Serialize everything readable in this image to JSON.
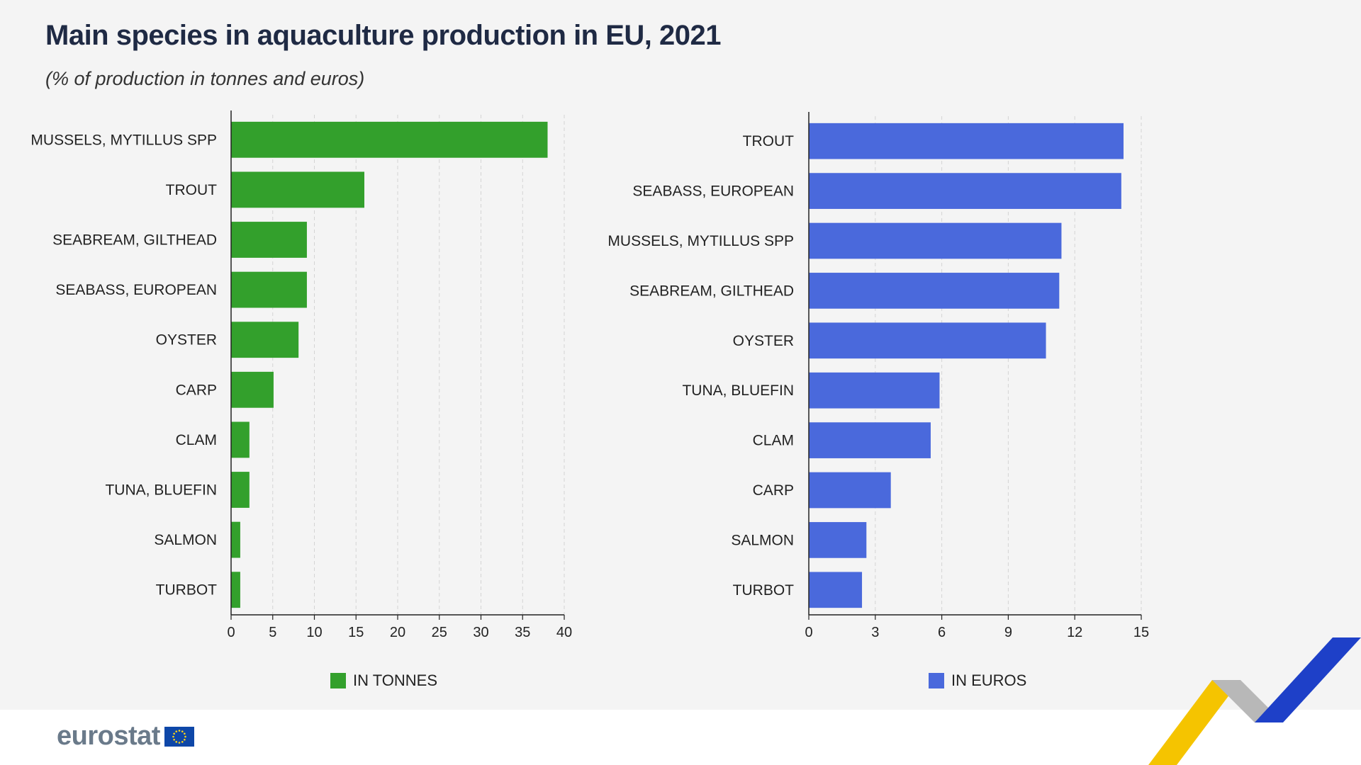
{
  "title": "Main species in aquaculture production in EU, 2021",
  "subtitle": "(% of production in tonnes and euros)",
  "logo_text": "eurostat",
  "chart_data": [
    {
      "type": "bar",
      "orientation": "horizontal",
      "categories": [
        "MUSSELS, MYTILLUS SPP",
        "TROUT",
        "SEABREAM, GILTHEAD",
        "SEABASS, EUROPEAN",
        "OYSTER",
        "CARP",
        "CLAM",
        "TUNA, BLUEFIN",
        "SALMON",
        "TURBOT"
      ],
      "series": [
        {
          "name": "IN TONNES",
          "values": [
            38,
            16,
            9.1,
            9.1,
            8.1,
            5.1,
            2.2,
            2.2,
            1.1,
            1.1
          ]
        }
      ],
      "xlim": [
        0,
        40
      ],
      "xticks": [
        0,
        5,
        10,
        15,
        20,
        25,
        30,
        35,
        40
      ],
      "grid": true,
      "legend": "bottom",
      "color": "#33a02c"
    },
    {
      "type": "bar",
      "orientation": "horizontal",
      "categories": [
        "TROUT",
        "SEABASS, EUROPEAN",
        "MUSSELS, MYTILLUS SPP",
        "SEABREAM, GILTHEAD",
        "OYSTER",
        "TUNA, BLUEFIN",
        "CLAM",
        "CARP",
        "SALMON",
        "TURBOT"
      ],
      "series": [
        {
          "name": "IN EUROS",
          "values": [
            14.2,
            14.1,
            11.4,
            11.3,
            10.7,
            5.9,
            5.5,
            3.7,
            2.6,
            2.4
          ]
        }
      ],
      "xlim": [
        0,
        15
      ],
      "xticks": [
        0,
        3,
        6,
        9,
        12,
        15
      ],
      "grid": true,
      "legend": "bottom",
      "color": "#4a69dc"
    }
  ]
}
